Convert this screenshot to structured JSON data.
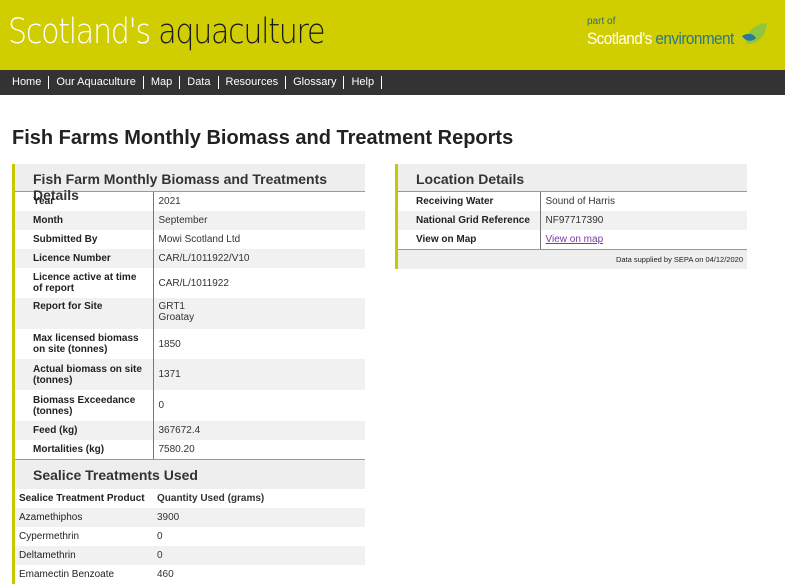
{
  "header": {
    "brand_light": "Scotland's",
    "brand_dark": "aquaculture",
    "part_of": "part of",
    "partner_light": "Scotland's",
    "partner_dark": "environment"
  },
  "nav": [
    "Home",
    "Our Aquaculture",
    "Map",
    "Data",
    "Resources",
    "Glossary",
    "Help"
  ],
  "page_title": "Fish Farms Monthly Biomass and Treatment Reports",
  "details": {
    "title": "Fish Farm Monthly Biomass and Treatments Details",
    "rows": [
      {
        "label": "Year",
        "value": "2021"
      },
      {
        "label": "Month",
        "value": "September"
      },
      {
        "label": "Submitted By",
        "value": "Mowi Scotland Ltd"
      },
      {
        "label": "Licence Number",
        "value": "CAR/L/1011922/V10"
      },
      {
        "label": "Licence active at time of report",
        "value": "CAR/L/1011922"
      },
      {
        "label": "Report for Site",
        "value": "GRT1",
        "value2": "Groatay"
      },
      {
        "label": "Max licensed biomass on site (tonnes)",
        "value": "1850"
      },
      {
        "label": "Actual biomass on site (tonnes)",
        "value": "1371"
      },
      {
        "label": "Biomass Exceedance (tonnes)",
        "value": "0"
      },
      {
        "label": "Feed (kg)",
        "value": "367672.4"
      },
      {
        "label": "Mortalities (kg)",
        "value": "7580.20"
      }
    ]
  },
  "sealice": {
    "title": "Sealice Treatments Used",
    "col1": "Sealice Treatment Product",
    "col2": "Quantity Used (grams)",
    "rows": [
      {
        "product": "Azamethiphos",
        "qty": "3900"
      },
      {
        "product": "Cypermethrin",
        "qty": "0"
      },
      {
        "product": "Deltamethrin",
        "qty": "0"
      },
      {
        "product": "Emamectin Benzoate",
        "qty": "460"
      }
    ]
  },
  "location": {
    "title": "Location Details",
    "rows": [
      {
        "label": "Receiving Water",
        "value": "Sound of Harris"
      },
      {
        "label": "National Grid Reference",
        "value": "NF97717390"
      },
      {
        "label": "View on Map",
        "value": "View on map"
      }
    ],
    "footer": "Data supplied by SEPA on 04/12/2020"
  },
  "colors": {
    "brand": "#d0cd00",
    "nav": "#333333"
  }
}
